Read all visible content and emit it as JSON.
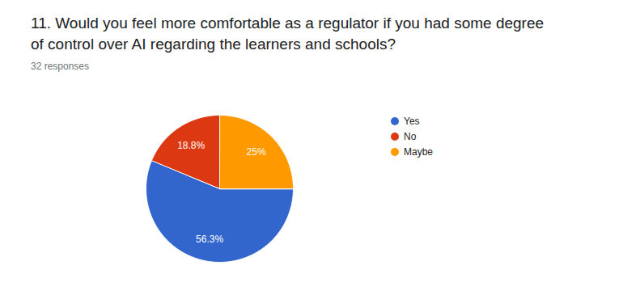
{
  "chart_data": {
    "type": "pie",
    "title": "11. Would you feel more comfortable as a regulator if you had some degree of control over AI regarding the learners and schools?",
    "subtitle": "32 responses",
    "categories": [
      "Yes",
      "No",
      "Maybe"
    ],
    "values": [
      56.3,
      18.8,
      25
    ],
    "value_labels": [
      "56.3%",
      "18.8%",
      "25%"
    ],
    "colors": [
      "#3366cc",
      "#dc3912",
      "#ff9900"
    ],
    "data_labels": true,
    "legend": "right"
  }
}
